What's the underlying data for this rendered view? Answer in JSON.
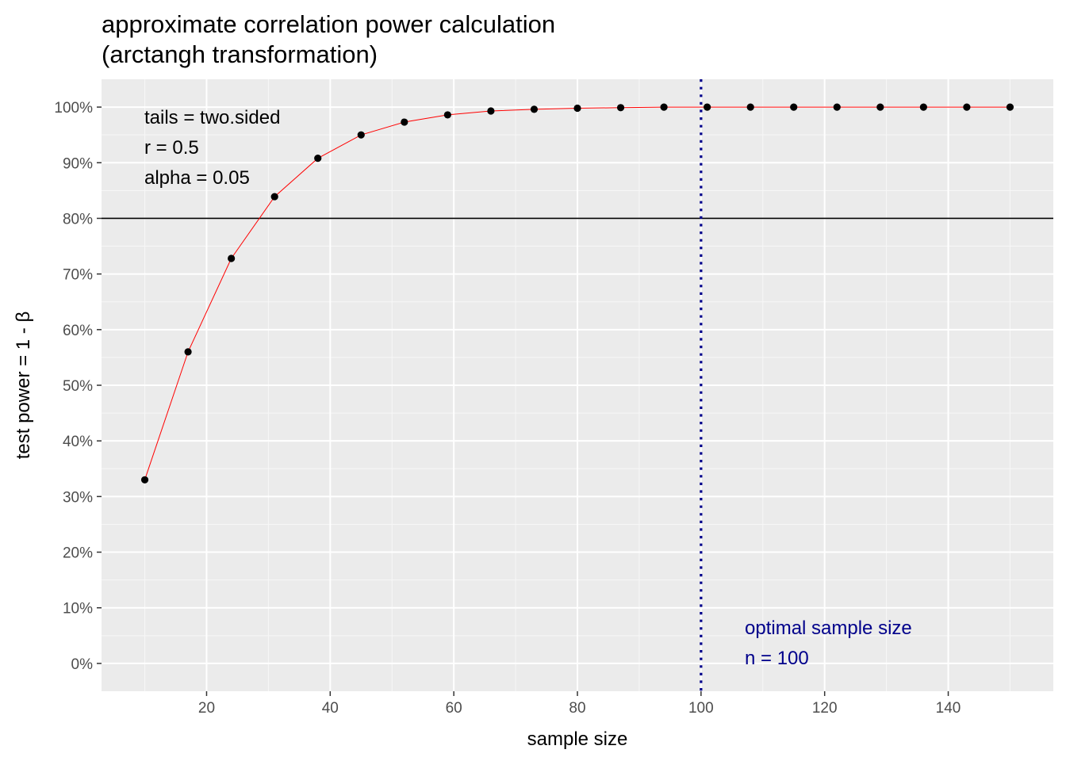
{
  "chart_data": {
    "type": "line",
    "title": "approximate correlation power calculation",
    "subtitle": "(arctangh transformation)",
    "xlabel": "sample size",
    "ylabel": "test power = 1 - β",
    "xlim": [
      3,
      157
    ],
    "ylim": [
      -5,
      105
    ],
    "x_ticks": [
      20,
      40,
      60,
      80,
      100,
      120,
      140
    ],
    "x_tick_labels": [
      "20",
      "40",
      "60",
      "80",
      "100",
      "120",
      "140"
    ],
    "y_ticks": [
      0,
      10,
      20,
      30,
      40,
      50,
      60,
      70,
      80,
      90,
      100
    ],
    "y_tick_labels": [
      "0%",
      "10%",
      "20%",
      "30%",
      "40%",
      "50%",
      "60%",
      "70%",
      "80%",
      "90%",
      "100%"
    ],
    "grid": true,
    "series": [
      {
        "color": "#ff0000",
        "point_color": "#000000",
        "x": [
          10,
          17,
          24,
          31,
          38,
          45,
          52,
          59,
          66,
          73,
          80,
          87,
          94,
          101,
          108,
          115,
          122,
          129,
          136,
          143,
          150
        ],
        "y": [
          33.0,
          56.0,
          72.8,
          83.9,
          90.8,
          95.0,
          97.3,
          98.6,
          99.3,
          99.6,
          99.8,
          99.9,
          100,
          100,
          100,
          100,
          100,
          100,
          100,
          100,
          100
        ]
      }
    ],
    "reference_lines": {
      "horizontal": {
        "y": 80,
        "color": "#000000"
      },
      "vertical": {
        "x": 100,
        "color": "#00008b",
        "style": "dotted"
      }
    },
    "annotations": {
      "params": [
        "tails = two.sided",
        "r = 0.5",
        "alpha = 0.05"
      ],
      "optimal": [
        "optimal sample size",
        "n = 100"
      ],
      "optimal_color": "#00008b"
    },
    "colors": {
      "panel_background": "#ebebeb",
      "grid_major": "#ffffff",
      "grid_minor": "#f7f7f7"
    }
  }
}
